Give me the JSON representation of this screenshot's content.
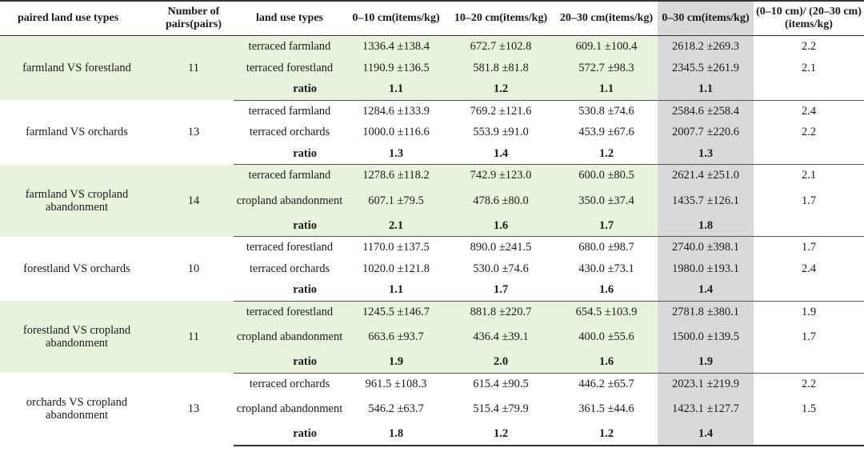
{
  "headers": {
    "paired": "paired land use types",
    "number": "Number of pairs(pairs)",
    "landuse": "land use types",
    "d0_10": "0–10 cm(items/kg)",
    "d10_20": "10–20 cm(items/kg)",
    "d20_30": "20–30 cm(items/kg)",
    "d0_30": "0–30 cm(items/kg)",
    "ratio_col": "(0–10 cm)/ (20–30 cm) (items/kg)"
  },
  "groups": [
    {
      "label": "farmland VS forestland",
      "pairs": "11",
      "rows": [
        {
          "type": "terraced farmland",
          "d0_10": "1336.4 ±138.4",
          "d10_20": "672.7 ±102.8",
          "d20_30": "609.1 ±100.4",
          "d0_30": "2618.2 ±269.3",
          "r": "2.2"
        },
        {
          "type": "terraced forestland",
          "d0_10": "1190.9 ±136.5",
          "d10_20": "581.8 ±81.8",
          "d20_30": "572.7 ±98.3",
          "d0_30": "2345.5 ±261.9",
          "r": "2.1"
        }
      ],
      "ratio": {
        "label": "ratio",
        "d0_10": "1.1",
        "d10_20": "1.2",
        "d20_30": "1.1",
        "d0_30": "1.1"
      }
    },
    {
      "label": "farmland VS orchards",
      "pairs": "13",
      "rows": [
        {
          "type": "terraced farmland",
          "d0_10": "1284.6 ±133.9",
          "d10_20": "769.2 ±121.6",
          "d20_30": "530.8 ±74.6",
          "d0_30": "2584.6 ±258.4",
          "r": "2.4"
        },
        {
          "type": "terraced orchards",
          "d0_10": "1000.0 ±116.6",
          "d10_20": "553.9 ±91.0",
          "d20_30": "453.9 ±67.6",
          "d0_30": "2007.7 ±220.6",
          "r": "2.2"
        }
      ],
      "ratio": {
        "label": "ratio",
        "d0_10": "1.3",
        "d10_20": "1.4",
        "d20_30": "1.2",
        "d0_30": "1.3"
      }
    },
    {
      "label": "farmland VS cropland abandonment",
      "pairs": "14",
      "rows": [
        {
          "type": "terraced farmland",
          "d0_10": "1278.6 ±118.2",
          "d10_20": "742.9 ±123.0",
          "d20_30": "600.0 ±80.5",
          "d0_30": "2621.4 ±251.0",
          "r": "2.1"
        },
        {
          "type": "cropland abandonment",
          "d0_10": "607.1 ±79.5",
          "d10_20": "478.6 ±80.0",
          "d20_30": "350.0 ±37.4",
          "d0_30": "1435.7 ±126.1",
          "r": "1.7"
        }
      ],
      "ratio": {
        "label": "ratio",
        "d0_10": "2.1",
        "d10_20": "1.6",
        "d20_30": "1.7",
        "d0_30": "1.8"
      }
    },
    {
      "label": "forestland VS orchards",
      "pairs": "10",
      "rows": [
        {
          "type": "terraced forestland",
          "d0_10": "1170.0 ±137.5",
          "d10_20": "890.0 ±241.5",
          "d20_30": "680.0 ±98.7",
          "d0_30": "2740.0 ±398.1",
          "r": "1.7"
        },
        {
          "type": "terraced orchards",
          "d0_10": "1020.0 ±121.8",
          "d10_20": "530.0 ±74.6",
          "d20_30": "430.0 ±73.1",
          "d0_30": "1980.0 ±193.1",
          "r": "2.4"
        }
      ],
      "ratio": {
        "label": "ratio",
        "d0_10": "1.1",
        "d10_20": "1.7",
        "d20_30": "1.6",
        "d0_30": "1.4"
      }
    },
    {
      "label": "forestland VS cropland abandonment",
      "pairs": "11",
      "rows": [
        {
          "type": "terraced forestland",
          "d0_10": "1245.5 ±146.7",
          "d10_20": "881.8 ±220.7",
          "d20_30": "654.5 ±103.9",
          "d0_30": "2781.8 ±380.1",
          "r": "1.9"
        },
        {
          "type": "cropland abandonment",
          "d0_10": "663.6 ±93.7",
          "d10_20": "436.4 ±39.1",
          "d20_30": "400.0 ±55.6",
          "d0_30": "1500.0 ±139.5",
          "r": "1.7"
        }
      ],
      "ratio": {
        "label": "ratio",
        "d0_10": "1.9",
        "d10_20": "2.0",
        "d20_30": "1.6",
        "d0_30": "1.9"
      }
    },
    {
      "label": "orchards VS cropland abandonment",
      "pairs": "13",
      "rows": [
        {
          "type": "terraced orchards",
          "d0_10": "961.5 ±108.3",
          "d10_20": "615.4 ±90.5",
          "d20_30": "446.2 ±65.7",
          "d0_30": "2023.1 ±219.9",
          "r": "2.2"
        },
        {
          "type": "cropland abandonment",
          "d0_10": "546.2 ±63.7",
          "d10_20": "515.4 ±79.9",
          "d20_30": "361.5 ±44.6",
          "d0_30": "1423.1 ±127.7",
          "r": "1.5"
        }
      ],
      "ratio": {
        "label": "ratio",
        "d0_10": "1.8",
        "d10_20": "1.2",
        "d20_30": "1.2",
        "d0_30": "1.4"
      }
    }
  ]
}
